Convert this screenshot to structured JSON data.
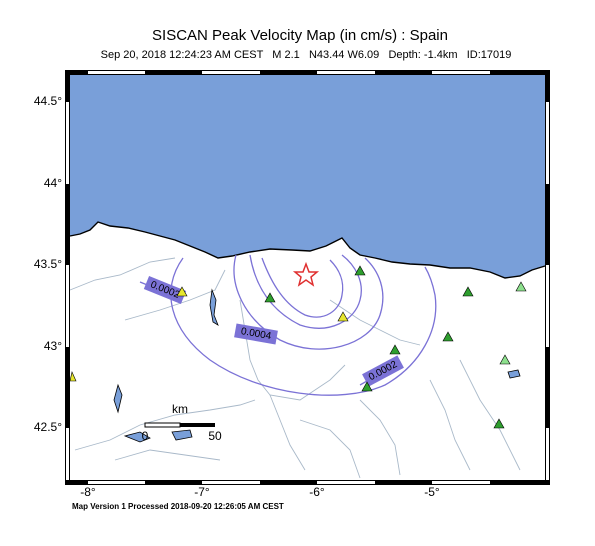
{
  "header": {
    "title": "SISCAN Peak Velocity Map (in cm/s) : Spain",
    "subtitle": "Sep 20, 2018 12:24:23 AM CEST   M 2.1   N43.44 W6.09   Depth: -1.4km   ID:17019"
  },
  "map": {
    "lat_labels": [
      "44.5°",
      "44°",
      "43.5°",
      "43°",
      "42.5°"
    ],
    "lon_labels": [
      "-8°",
      "-7°",
      "-6°",
      "-5°"
    ],
    "contour_labels": [
      "0.0002",
      "0.0004",
      "0.0002"
    ],
    "scale_bar": {
      "unit": "km",
      "start": "0",
      "end": "50"
    }
  },
  "footer": "Map Version 1 Processed 2018-09-20 12:26:05 AM CEST"
}
